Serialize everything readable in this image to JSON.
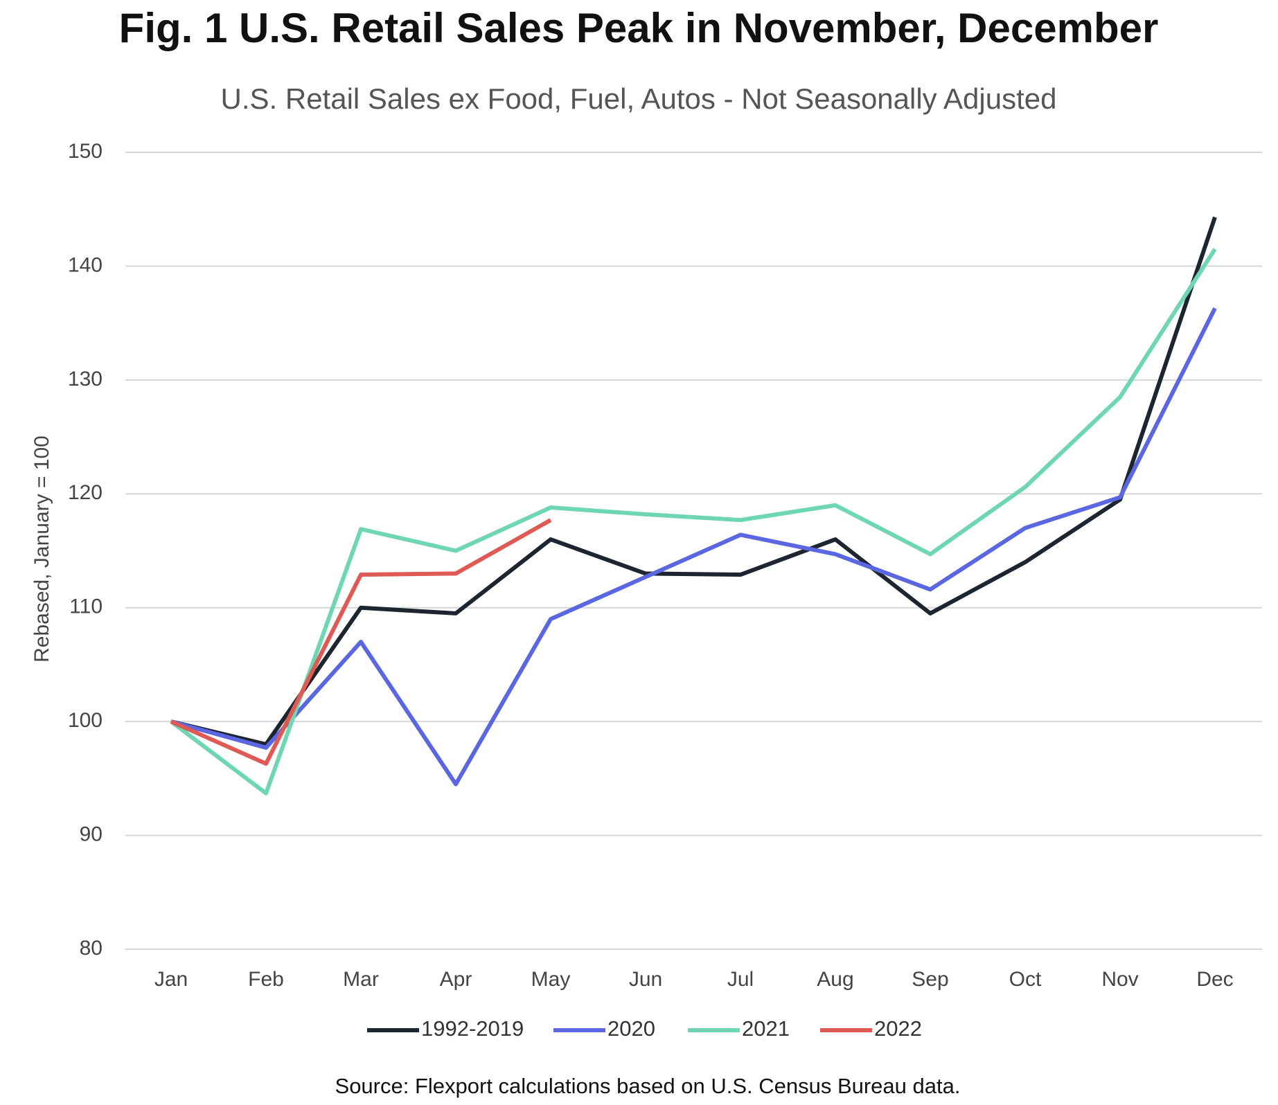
{
  "chart_data": {
    "type": "line",
    "title": "Fig. 1 U.S. Retail Sales Peak in November, December",
    "subtitle": "U.S. Retail Sales ex Food, Fuel, Autos - Not Seasonally Adjusted",
    "y_label": "Rebased, January = 100",
    "source": "Source: Flexport calculations based on U.S. Census Bureau data.",
    "categories": [
      "Jan",
      "Feb",
      "Mar",
      "Apr",
      "May",
      "Jun",
      "Jul",
      "Aug",
      "Sep",
      "Oct",
      "Nov",
      "Dec"
    ],
    "series": [
      {
        "name": "1992-2019",
        "color": "#1c2530",
        "values": [
          100,
          98,
          110,
          109.5,
          116,
          113,
          112.9,
          116,
          109.5,
          114,
          119.5,
          144.3
        ]
      },
      {
        "name": "2020",
        "color": "#5a67e0",
        "values": [
          100,
          97.7,
          107,
          94.5,
          109,
          112.7,
          116.4,
          114.7,
          111.6,
          117,
          119.7,
          136.3
        ]
      },
      {
        "name": "2021",
        "color": "#6fd6b3",
        "values": [
          100,
          93.7,
          116.9,
          115,
          118.8,
          118.2,
          117.7,
          119,
          114.7,
          120.6,
          128.5,
          141.5
        ]
      },
      {
        "name": "2022",
        "color": "#e05a55",
        "values": [
          100,
          96.3,
          112.9,
          113,
          117.7,
          null,
          null,
          null,
          null,
          null,
          null,
          null
        ]
      }
    ],
    "ylim": [
      80,
      150
    ],
    "yticks": [
      80,
      90,
      100,
      110,
      120,
      130,
      140,
      150
    ],
    "grid": true,
    "legend": "bottom"
  }
}
